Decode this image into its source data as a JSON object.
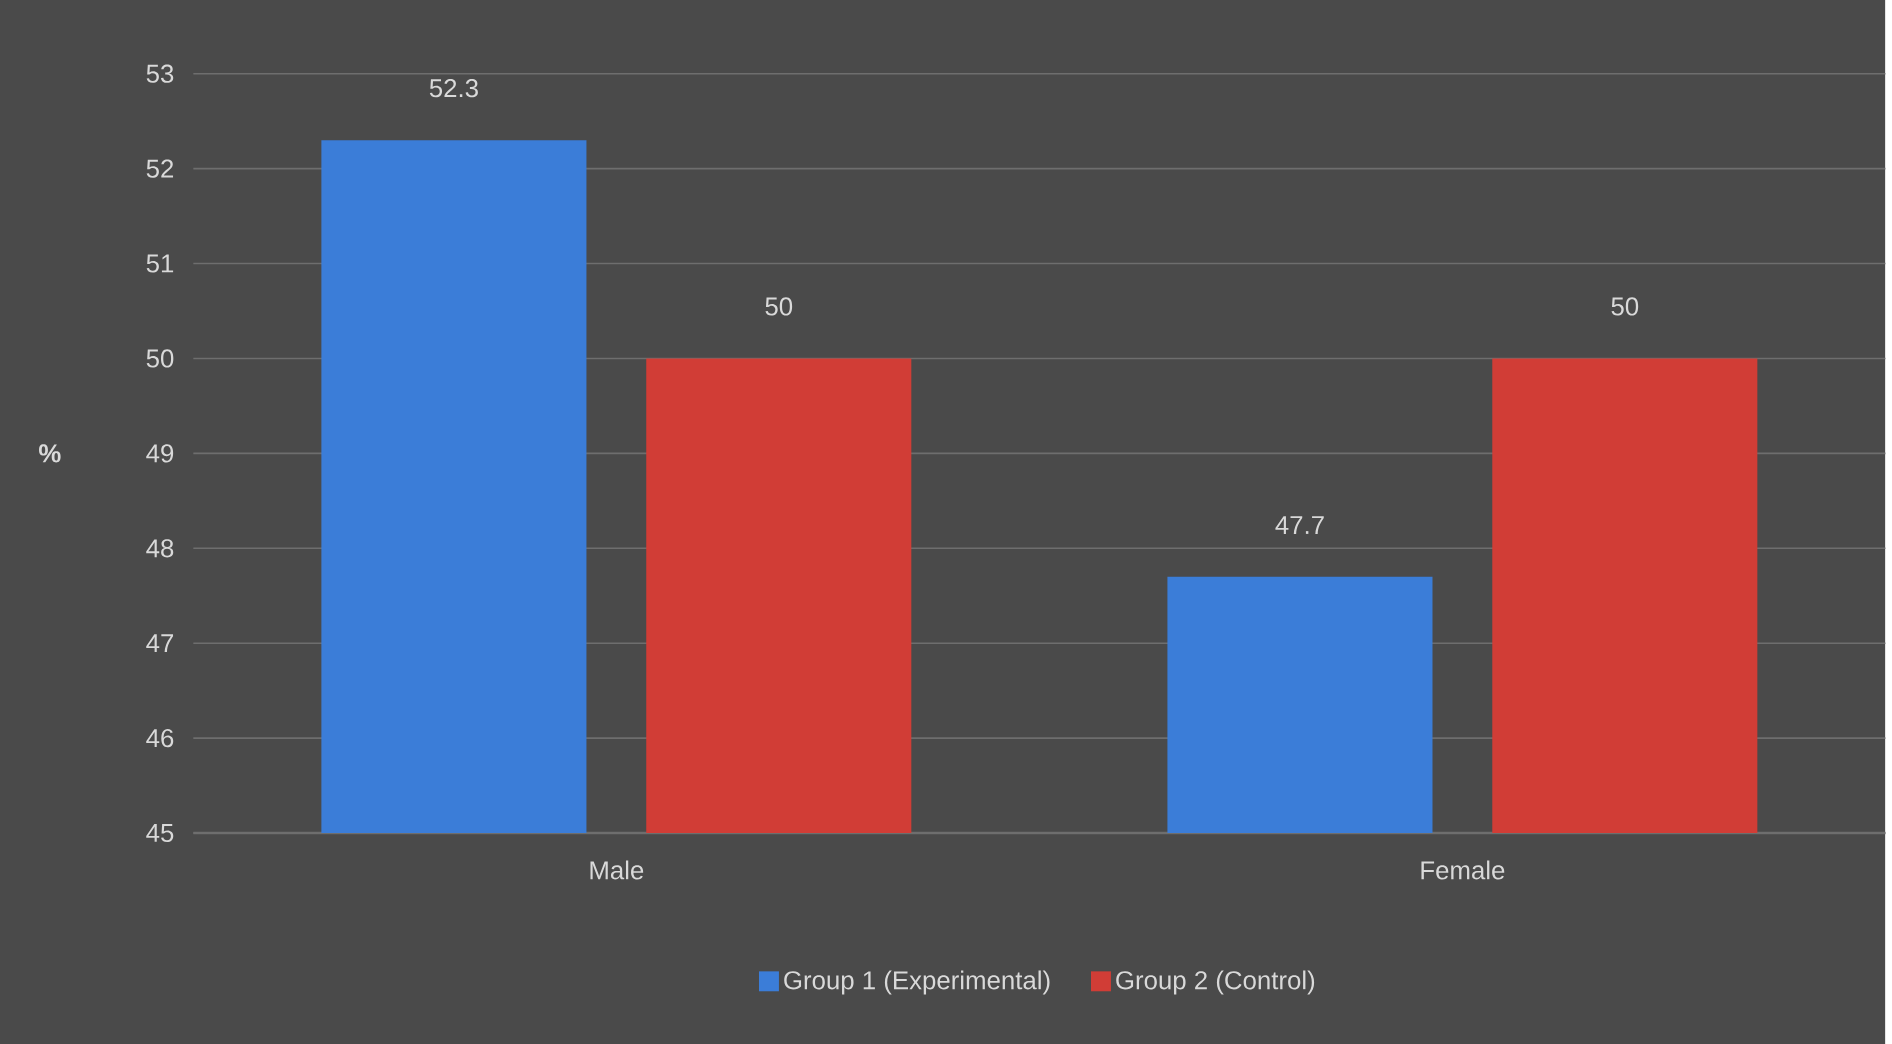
{
  "chart_data": {
    "type": "bar",
    "ylabel": "%",
    "categories": [
      "Male",
      "Female"
    ],
    "series": [
      {
        "name": "Group 1 (Experimental)",
        "color": "#3b7dd8",
        "values": [
          52.3,
          47.7
        ]
      },
      {
        "name": "Group 2 (Control)",
        "color": "#d13d36",
        "values": [
          50,
          50
        ]
      }
    ],
    "ylim": [
      45,
      53
    ],
    "yticks": [
      45,
      46,
      47,
      48,
      49,
      50,
      51,
      52,
      53
    ],
    "grid": "y",
    "legend": "bottom",
    "data_labels": true
  }
}
